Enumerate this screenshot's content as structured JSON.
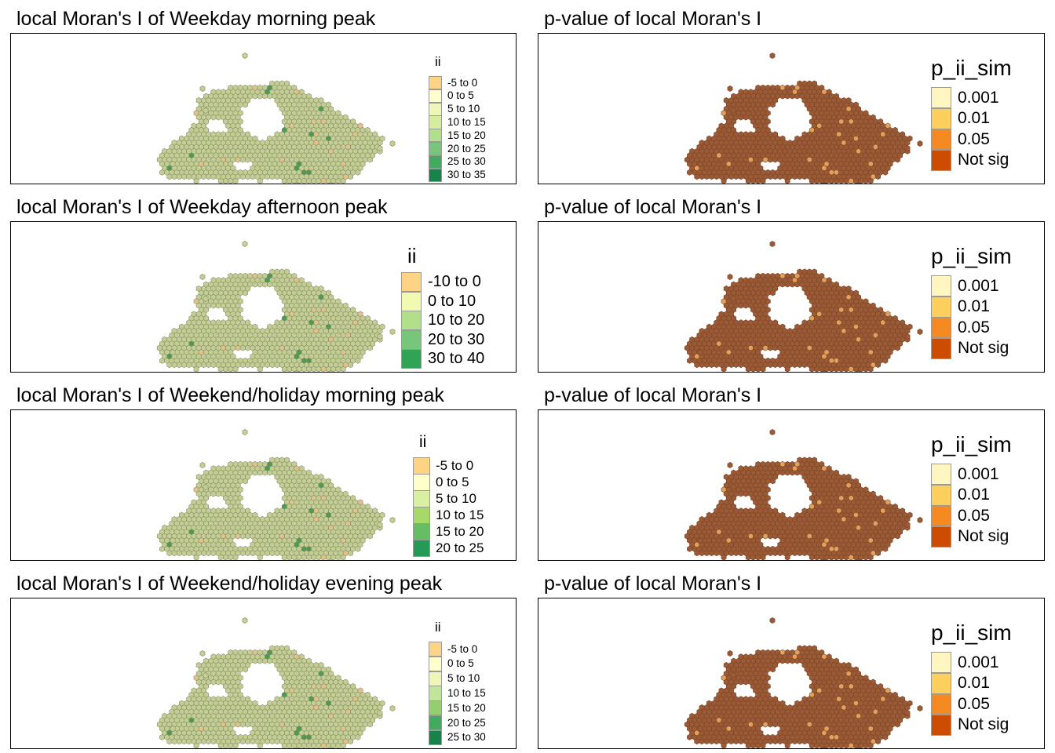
{
  "panels": [
    {
      "title": "local Moran's I of Weekday morning peak",
      "kind": "ii",
      "legend": {
        "title": "ii",
        "size": "s",
        "items": [
          {
            "label": "-5 to 0",
            "color": "#fdd485"
          },
          {
            "label": "0 to 5",
            "color": "#ffffcc"
          },
          {
            "label": "5 to 10",
            "color": "#eef7b8"
          },
          {
            "label": "10 to 15",
            "color": "#d5ee9e"
          },
          {
            "label": "15 to 20",
            "color": "#b2df8a"
          },
          {
            "label": "20 to 25",
            "color": "#78c679"
          },
          {
            "label": "25 to 30",
            "color": "#41ab5d"
          },
          {
            "label": "30 to 35",
            "color": "#16844a"
          }
        ]
      }
    },
    {
      "title": "p-value of local Moran's I",
      "kind": "p",
      "legend": {
        "title": "p_ii_sim",
        "items": [
          {
            "label": "0.001",
            "color": "#fff6c2"
          },
          {
            "label": "0.01",
            "color": "#fecf5d"
          },
          {
            "label": "0.05",
            "color": "#f58a22"
          },
          {
            "label": "Not sig",
            "color": "#cc4c02"
          }
        ]
      }
    },
    {
      "title": "local Moran's I of Weekday afternoon peak",
      "kind": "ii",
      "legend": {
        "title": "ii",
        "size": "l",
        "items": [
          {
            "label": "-10 to 0",
            "color": "#fdd485"
          },
          {
            "label": "0 to 10",
            "color": "#f2f9b0"
          },
          {
            "label": "10 to 20",
            "color": "#b2df8a"
          },
          {
            "label": "20 to 30",
            "color": "#78c679"
          },
          {
            "label": "30 to 40",
            "color": "#31a354"
          }
        ]
      }
    },
    {
      "title": "p-value of local Moran's I",
      "kind": "p",
      "legend": {
        "title": "p_ii_sim",
        "items": [
          {
            "label": "0.001",
            "color": "#fff6c2"
          },
          {
            "label": "0.01",
            "color": "#fecf5d"
          },
          {
            "label": "0.05",
            "color": "#f58a22"
          },
          {
            "label": "Not sig",
            "color": "#cc4c02"
          }
        ]
      }
    },
    {
      "title": "local Moran's I of Weekend/holiday morning peak",
      "kind": "ii",
      "legend": {
        "title": "ii",
        "size": "m",
        "items": [
          {
            "label": "-5 to 0",
            "color": "#fdd485"
          },
          {
            "label": "0 to 5",
            "color": "#ffffcc"
          },
          {
            "label": "5 to 10",
            "color": "#d9f0a3"
          },
          {
            "label": "10 to 15",
            "color": "#a6d96a"
          },
          {
            "label": "15 to 20",
            "color": "#66bd63"
          },
          {
            "label": "20 to 25",
            "color": "#239b56"
          }
        ]
      }
    },
    {
      "title": "p-value of local Moran's I",
      "kind": "p",
      "legend": {
        "title": "p_ii_sim",
        "items": [
          {
            "label": "0.001",
            "color": "#fff6c2"
          },
          {
            "label": "0.01",
            "color": "#fecf5d"
          },
          {
            "label": "0.05",
            "color": "#f58a22"
          },
          {
            "label": "Not sig",
            "color": "#cc4c02"
          }
        ]
      }
    },
    {
      "title": "local Moran's I of Weekend/holiday evening peak",
      "kind": "ii",
      "legend": {
        "title": "ii",
        "size": "s",
        "items": [
          {
            "label": "-5 to 0",
            "color": "#fdd485"
          },
          {
            "label": "0 to 5",
            "color": "#ffffcc"
          },
          {
            "label": "5 to 10",
            "color": "#eef7b8"
          },
          {
            "label": "10 to 15",
            "color": "#c2e699"
          },
          {
            "label": "15 to 20",
            "color": "#93cf6f"
          },
          {
            "label": "20 to 25",
            "color": "#41ab5d"
          },
          {
            "label": "25 to 30",
            "color": "#16844a"
          }
        ]
      }
    },
    {
      "title": "p-value of local Moran's I",
      "kind": "p",
      "legend": {
        "title": "p_ii_sim",
        "items": [
          {
            "label": "0.001",
            "color": "#fff6c2"
          },
          {
            "label": "0.01",
            "color": "#fecf5d"
          },
          {
            "label": "0.05",
            "color": "#f58a22"
          },
          {
            "label": "Not sig",
            "color": "#cc4c02"
          }
        ]
      }
    }
  ],
  "map_colors": {
    "ii_fill": "#c3cf92",
    "ii_stroke": "#8a8c6e",
    "p_fill": "#9a5a35",
    "p_stroke": "#7d4426"
  }
}
